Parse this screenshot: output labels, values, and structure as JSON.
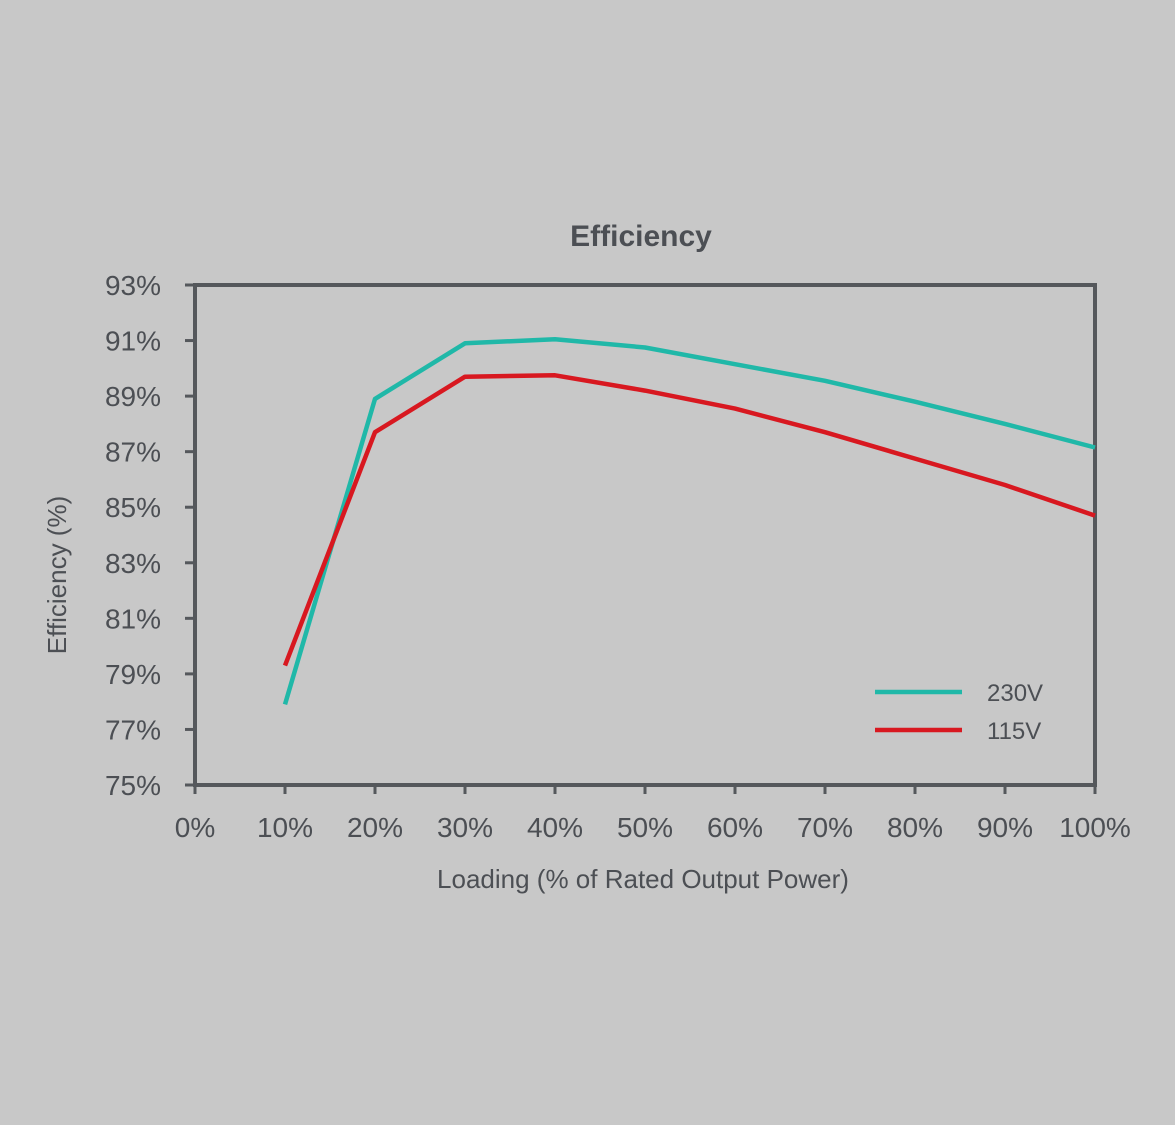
{
  "chart_data": {
    "type": "line",
    "title": "Efficiency",
    "xlabel": "Loading (% of Rated Output Power)",
    "ylabel": "Efficiency (%)",
    "x_tick_labels": [
      "0%",
      "10%",
      "20%",
      "30%",
      "40%",
      "50%",
      "60%",
      "70%",
      "80%",
      "90%",
      "100%"
    ],
    "y_tick_labels": [
      "93%",
      "91%",
      "89%",
      "87%",
      "85%",
      "83%",
      "81%",
      "79%",
      "77%",
      "75%"
    ],
    "xlim": [
      0,
      100
    ],
    "ylim": [
      75,
      93
    ],
    "grid": false,
    "legend_position": "bottom-right",
    "series": [
      {
        "name": "230V",
        "color": "#20b8a8",
        "x": [
          10,
          20,
          30,
          40,
          50,
          60,
          70,
          80,
          90,
          100
        ],
        "y": [
          77.9,
          88.9,
          90.9,
          91.05,
          90.75,
          90.15,
          89.55,
          88.8,
          88.0,
          87.15
        ]
      },
      {
        "name": "115V",
        "color": "#d81820",
        "x": [
          10,
          20,
          30,
          40,
          50,
          60,
          70,
          80,
          90,
          100
        ],
        "y": [
          79.3,
          87.7,
          89.7,
          89.75,
          89.2,
          88.55,
          87.7,
          86.75,
          85.8,
          84.7
        ]
      }
    ]
  }
}
